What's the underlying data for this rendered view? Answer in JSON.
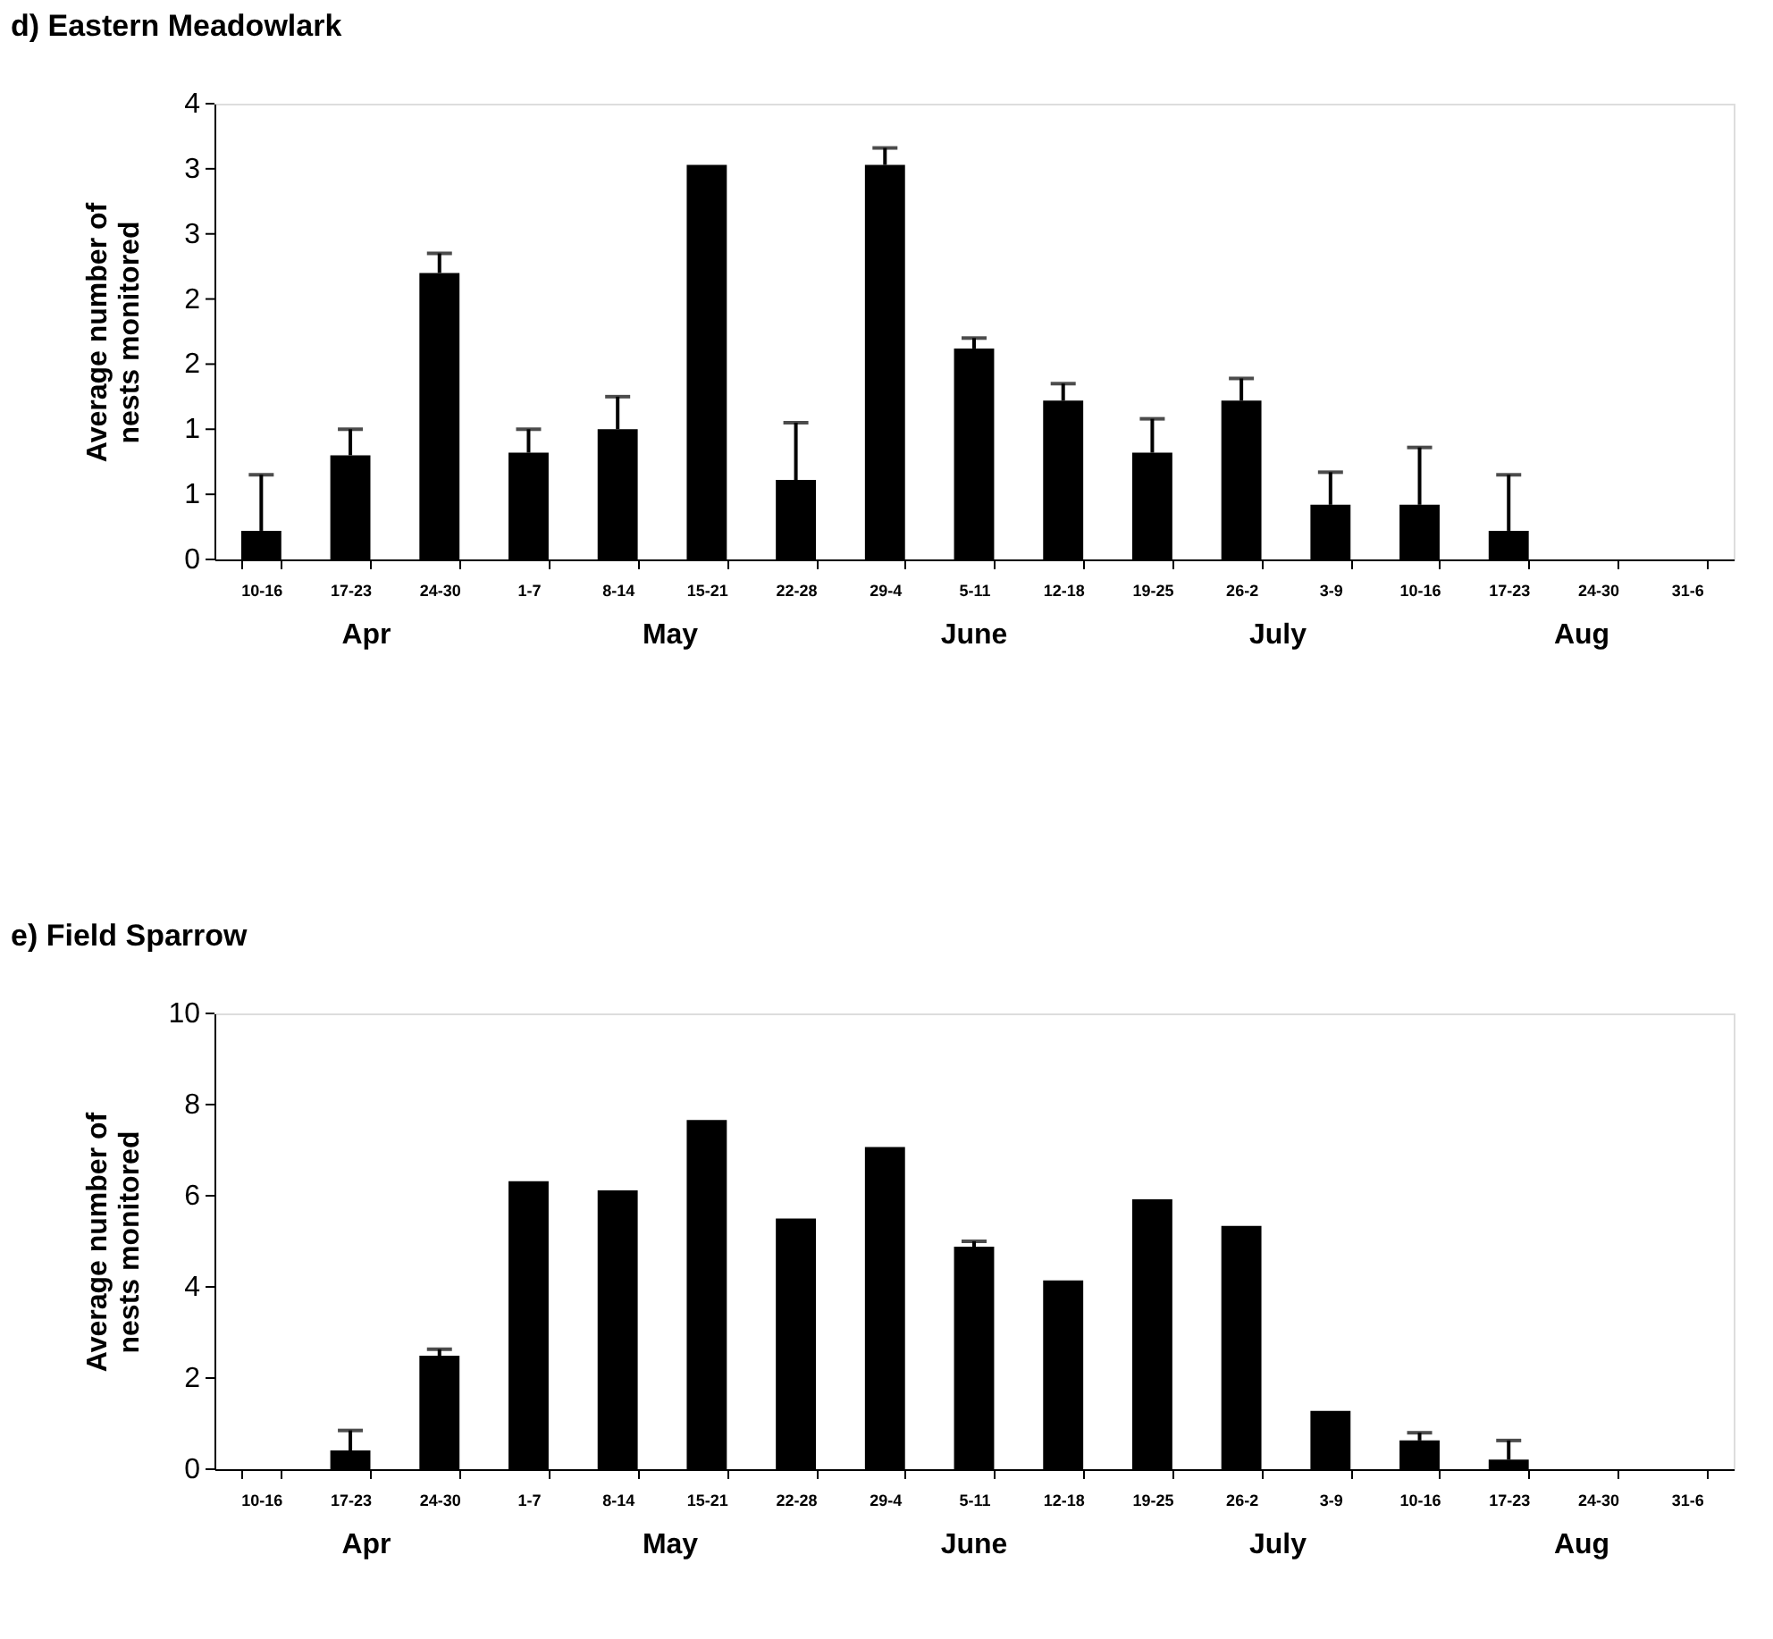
{
  "chart_data": [
    {
      "type": "bar",
      "title": "d) Eastern Meadowlark",
      "ylabel": "Average number of\nnests monitored",
      "categories": [
        "10-16",
        "17-23",
        "24-30",
        "1-7",
        "8-14",
        "15-21",
        "22-28",
        "29-4",
        "5-11",
        "12-18",
        "19-25",
        "26-2",
        "3-9",
        "10-16",
        "17-23",
        "24-30",
        "31-6"
      ],
      "series": [
        {
          "color": "#000000",
          "values": [
            0.22,
            0.8,
            2.2,
            0.82,
            1.0,
            3.03,
            0.61,
            3.03,
            1.62,
            1.22,
            0.82,
            1.22,
            0.42,
            0.42,
            0.22,
            0,
            0
          ],
          "errors": [
            [
              0.22,
              0.65
            ],
            [
              0.8,
              1.0
            ],
            [
              2.2,
              2.35
            ],
            [
              0.82,
              1.0
            ],
            [
              1.0,
              1.25
            ],
            null,
            [
              0.61,
              1.05
            ],
            [
              3.03,
              3.16
            ],
            [
              1.62,
              1.7
            ],
            [
              1.22,
              1.35
            ],
            [
              0.82,
              1.08
            ],
            [
              1.22,
              1.39
            ],
            [
              0.42,
              0.67
            ],
            [
              0.42,
              0.86
            ],
            [
              0.22,
              0.65
            ],
            null,
            null
          ]
        }
      ],
      "ylim": [
        0,
        3.5
      ],
      "yticks": [
        0,
        {
          "value": 0.5,
          "label": "1"
        },
        1,
        {
          "value": 1.5,
          "label": "2"
        },
        2,
        {
          "value": 2.5,
          "label": "3"
        },
        3,
        {
          "value": 3.5,
          "label": "4"
        }
      ],
      "annotations": [
        "Apr",
        "May",
        "June",
        "July",
        "Aug"
      ],
      "grid": false
    },
    {
      "type": "bar",
      "title": "e) Field Sparrow",
      "ylabel": "Average number of\nnests monitored",
      "categories": [
        "10-16",
        "17-23",
        "24-30",
        "1-7",
        "8-14",
        "15-21",
        "22-28",
        "29-4",
        "5-11",
        "12-18",
        "19-25",
        "26-2",
        "3-9",
        "10-16",
        "17-23",
        "24-30",
        "31-6"
      ],
      "series": [
        {
          "color": "#000000",
          "values": [
            0,
            0.41,
            2.49,
            6.32,
            6.12,
            7.66,
            5.5,
            7.07,
            4.88,
            4.14,
            5.92,
            5.34,
            1.28,
            0.63,
            0.21,
            0,
            0
          ],
          "errors": [
            null,
            [
              0.41,
              0.85
            ],
            [
              2.49,
              2.63
            ],
            null,
            null,
            null,
            null,
            null,
            [
              4.88,
              5.0
            ],
            null,
            null,
            null,
            null,
            [
              0.63,
              0.8
            ],
            [
              0.21,
              0.63
            ],
            null,
            null
          ]
        }
      ],
      "ylim": [
        0,
        10
      ],
      "yticks": [
        0,
        2,
        4,
        6,
        8,
        10
      ],
      "annotations": [
        "Apr",
        "May",
        "June",
        "July",
        "Aug"
      ],
      "grid": false
    }
  ]
}
